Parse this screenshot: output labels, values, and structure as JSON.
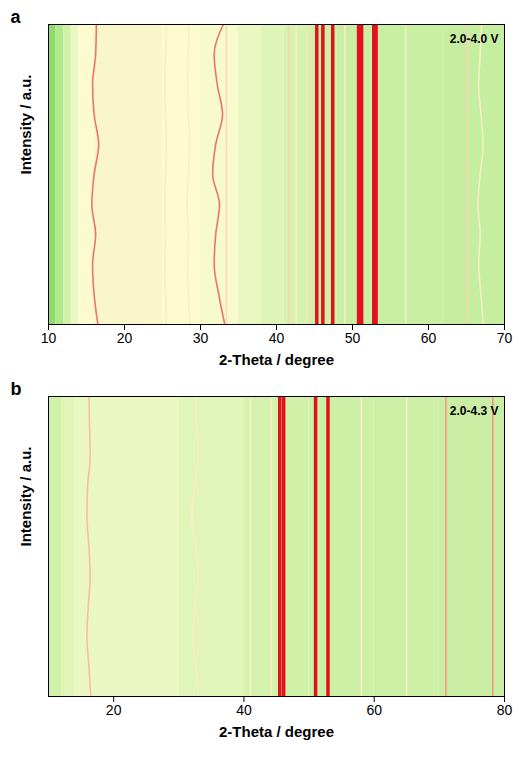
{
  "chart_data": [
    {
      "type": "heatmap",
      "panel": "a",
      "annotations": [
        "2.0-4.0 V"
      ],
      "x_label": "2-Theta / degree",
      "y_label": "Intensity / a.u.",
      "xlim": [
        10,
        70
      ],
      "xticks": [
        10,
        20,
        30,
        40,
        50,
        60,
        70
      ],
      "ylim": [
        0,
        10
      ],
      "tick_labels": "x",
      "color_range": [
        0,
        1
      ],
      "y": [
        0,
        1,
        2,
        3,
        4,
        5,
        6,
        7,
        8,
        9,
        10
      ],
      "background": {
        "bins": [
          10,
          11,
          12,
          13,
          14,
          16,
          20,
          25,
          30,
          35,
          38,
          41,
          44,
          48,
          55,
          62,
          70
        ],
        "values": [
          0.05,
          0.18,
          0.3,
          0.42,
          0.5,
          0.52,
          0.52,
          0.5,
          0.48,
          0.42,
          0.37,
          0.33,
          0.3,
          0.27,
          0.26,
          0.25
        ]
      },
      "peaks": [
        {
          "positions": [
            16.5,
            16.0,
            15.8,
            16.2,
            15.7,
            16.0,
            16.6,
            16.0,
            15.8,
            16.2,
            16.3
          ],
          "intensity": 0.85
        },
        {
          "positions": [
            33.2,
            32.4,
            31.8,
            32.0,
            32.5,
            31.6,
            32.0,
            32.9,
            32.2,
            31.8,
            33.0
          ],
          "intensity": 0.85
        },
        {
          "positions": [
            33.4,
            33.4,
            33.4,
            33.4,
            33.4,
            33.4,
            33.4,
            33.4,
            33.4,
            33.4,
            33.4
          ],
          "intensity": 0.62
        },
        {
          "positions": [
            25.5,
            25.4,
            25.3,
            25.4,
            25.3,
            25.4,
            25.5,
            25.4,
            25.3,
            25.4,
            25.5
          ],
          "intensity": 0.55
        },
        {
          "positions": [
            28.6,
            28.4,
            28.3,
            28.4,
            28.2,
            28.4,
            28.6,
            28.4,
            28.3,
            28.4,
            28.5
          ],
          "intensity": 0.55
        },
        {
          "positions": [
            41.6,
            41.6,
            41.6,
            41.6,
            41.6,
            41.6,
            41.6,
            41.6,
            41.6,
            41.6,
            41.6
          ],
          "intensity": 0.65
        },
        {
          "positions": [
            42.6,
            42.6,
            42.6,
            42.6,
            42.6,
            42.6,
            42.6,
            42.6,
            42.6,
            42.6,
            42.6
          ],
          "intensity": 0.55
        },
        {
          "positions": [
            44.2,
            44.2,
            44.2,
            44.2,
            44.2,
            44.2,
            44.2,
            44.2,
            44.2,
            44.2,
            44.2
          ],
          "intensity": 0.6
        },
        {
          "positions": [
            45.3,
            45.3,
            45.3,
            45.3,
            45.3,
            45.3,
            45.3,
            45.3,
            45.3,
            45.3,
            45.3
          ],
          "intensity": 1
        },
        {
          "positions": [
            46.1,
            46.1,
            46.1,
            46.1,
            46.1,
            46.1,
            46.1,
            46.1,
            46.1,
            46.1,
            46.1
          ],
          "intensity": 1
        },
        {
          "positions": [
            47.4,
            47.4,
            47.4,
            47.4,
            47.4,
            47.4,
            47.4,
            47.4,
            47.4,
            47.4,
            47.4
          ],
          "intensity": 1
        },
        {
          "positions": [
            49.0,
            49.0,
            49.0,
            49.0,
            49.0,
            49.0,
            49.0,
            49.0,
            49.0,
            49.0,
            49.0
          ],
          "intensity": 0.55
        },
        {
          "positions": [
            50.8,
            50.8,
            50.8,
            50.8,
            50.8,
            50.8,
            50.8,
            50.8,
            50.8,
            50.8,
            50.8
          ],
          "intensity": 1
        },
        {
          "positions": [
            51.2,
            51.2,
            51.2,
            51.2,
            51.2,
            51.2,
            51.2,
            51.2,
            51.2,
            51.2,
            51.2
          ],
          "intensity": 1
        },
        {
          "positions": [
            52.8,
            52.8,
            52.8,
            52.8,
            52.8,
            52.8,
            52.8,
            52.8,
            52.8,
            52.8,
            52.8
          ],
          "intensity": 1
        },
        {
          "positions": [
            53.1,
            53.1,
            53.1,
            53.1,
            53.1,
            53.1,
            53.1,
            53.1,
            53.1,
            53.1,
            53.1
          ],
          "intensity": 1
        },
        {
          "positions": [
            57.0,
            57.0,
            57.0,
            57.0,
            57.0,
            57.0,
            57.0,
            57.0,
            57.0,
            57.0,
            57.0
          ],
          "intensity": 0.55
        },
        {
          "positions": [
            65.1,
            65.1,
            65.1,
            65.1,
            65.1,
            65.1,
            65.1,
            65.1,
            65.1,
            65.1,
            65.1
          ],
          "intensity": 0.65
        },
        {
          "positions": [
            67.2,
            66.9,
            66.6,
            66.8,
            66.5,
            66.8,
            67.2,
            66.9,
            66.6,
            66.8,
            67.0
          ],
          "intensity": 0.55
        }
      ]
    },
    {
      "type": "heatmap",
      "panel": "b",
      "annotations": [
        "2.0-4.3 V"
      ],
      "x_label": "2-Theta / degree",
      "y_label": "Intensity / a.u.",
      "xlim": [
        10,
        80
      ],
      "xticks": [
        20,
        40,
        60,
        80
      ],
      "ylim": [
        0,
        10
      ],
      "tick_labels": "x",
      "color_range": [
        0,
        1
      ],
      "y": [
        0,
        1,
        2,
        3,
        4,
        5,
        6,
        7,
        8,
        9,
        10
      ],
      "background": {
        "bins": [
          10,
          12,
          14,
          20,
          30,
          40,
          45,
          50,
          60,
          70,
          80
        ],
        "values": [
          0.3,
          0.38,
          0.42,
          0.42,
          0.38,
          0.32,
          0.3,
          0.28,
          0.28,
          0.27
        ]
      },
      "peaks": [
        {
          "positions": [
            16.5,
            16.2,
            15.9,
            16.1,
            16.4,
            16.2,
            15.9,
            16.0,
            16.4,
            16.3,
            16.2
          ],
          "intensity": 0.72
        },
        {
          "positions": [
            33.0,
            32.6,
            32.2,
            32.5,
            33.0,
            32.6,
            32.0,
            32.4,
            33.0,
            32.7,
            32.6
          ],
          "intensity": 0.55
        },
        {
          "positions": [
            41.0,
            41.0,
            41.0,
            41.0,
            41.0,
            41.0,
            41.0,
            41.0,
            41.0,
            41.0,
            41.0
          ],
          "intensity": 0.55
        },
        {
          "positions": [
            44.2,
            44.2,
            44.2,
            44.2,
            44.2,
            44.2,
            44.2,
            44.2,
            44.2,
            44.2,
            44.2
          ],
          "intensity": 0.55
        },
        {
          "positions": [
            45.5,
            45.5,
            45.5,
            45.5,
            45.5,
            45.5,
            45.5,
            45.5,
            45.5,
            45.5,
            45.5
          ],
          "intensity": 1
        },
        {
          "positions": [
            46.1,
            46.1,
            46.1,
            46.1,
            46.1,
            46.1,
            46.1,
            46.1,
            46.1,
            46.1,
            46.1
          ],
          "intensity": 1
        },
        {
          "positions": [
            51.0,
            51.0,
            51.0,
            51.0,
            51.0,
            51.0,
            51.0,
            51.0,
            51.0,
            51.0,
            51.0
          ],
          "intensity": 1
        },
        {
          "positions": [
            52.9,
            52.9,
            52.9,
            52.9,
            52.9,
            52.9,
            52.9,
            52.9,
            52.9,
            52.9,
            52.9
          ],
          "intensity": 1
        },
        {
          "positions": [
            58.0,
            58.0,
            58.0,
            58.0,
            58.0,
            58.0,
            58.0,
            58.0,
            58.0,
            58.0,
            58.0
          ],
          "intensity": 0.55
        },
        {
          "positions": [
            65.0,
            65.0,
            65.0,
            65.0,
            65.0,
            65.0,
            65.0,
            65.0,
            65.0,
            65.0,
            65.0
          ],
          "intensity": 0.55
        },
        {
          "positions": [
            71.0,
            71.0,
            71.0,
            71.0,
            71.0,
            71.0,
            71.0,
            71.0,
            71.0,
            71.0,
            71.0
          ],
          "intensity": 0.8
        },
        {
          "positions": [
            78.2,
            78.2,
            78.2,
            78.2,
            78.2,
            78.2,
            78.2,
            78.2,
            78.2,
            78.2,
            78.2
          ],
          "intensity": 0.8
        }
      ]
    }
  ]
}
